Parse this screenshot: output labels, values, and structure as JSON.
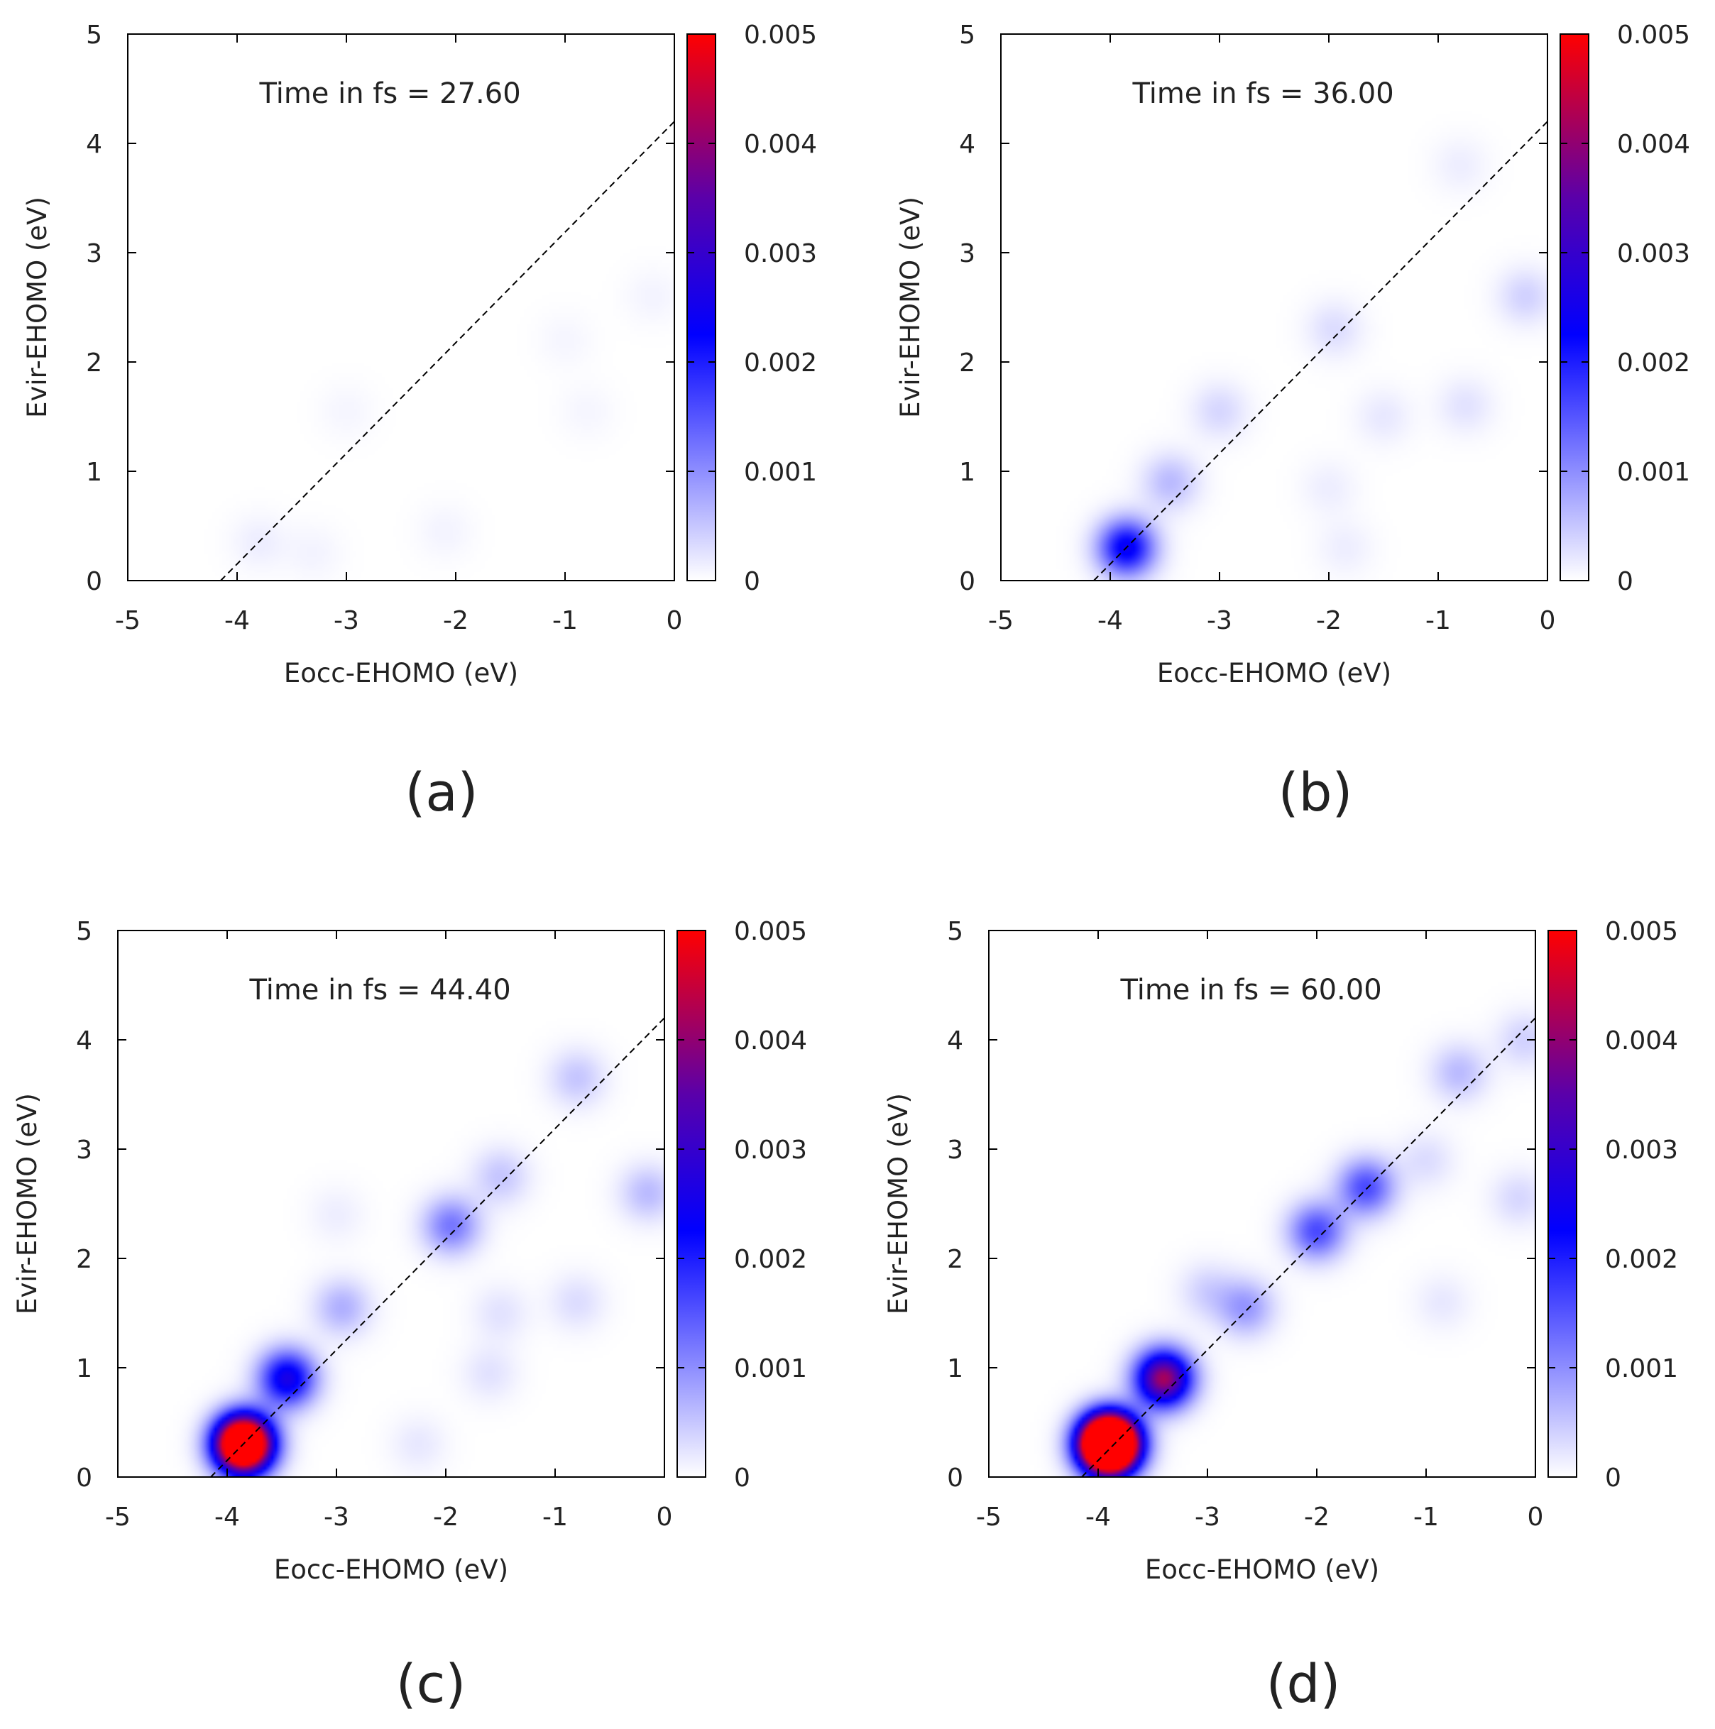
{
  "figure": {
    "captions": [
      "(a)",
      "(b)",
      "(c)",
      "(d)"
    ]
  },
  "colors": {
    "low": "#ffffff",
    "mid": "#0000ff",
    "high": "#ff0000",
    "diagonal": "#000000"
  },
  "chart_data": [
    {
      "type": "heatmap",
      "panel": "(a)",
      "annotation": "Time in fs = 27.60",
      "xlabel": "Eocc-EHOMO (eV)",
      "ylabel": "Evir-EHOMO (eV)",
      "xlim": [
        -5,
        0
      ],
      "ylim": [
        0,
        5
      ],
      "xticks": [
        "-5",
        "-4",
        "-3",
        "-2",
        "-1",
        "0"
      ],
      "yticks": [
        "0",
        "1",
        "2",
        "3",
        "4",
        "5"
      ],
      "colorbar": {
        "range": [
          0,
          0.005
        ],
        "ticks": [
          "0",
          "0.001",
          "0.002",
          "0.003",
          "0.004",
          "0.005"
        ]
      },
      "diagonal": {
        "style": "dashed",
        "from": [
          -4.15,
          0
        ],
        "to": [
          0,
          4.2
        ]
      },
      "peaks": [
        {
          "x": -3.8,
          "y": 0.35,
          "value": 0.00015
        },
        {
          "x": -3.3,
          "y": 0.25,
          "value": 0.0001
        },
        {
          "x": -2.1,
          "y": 0.45,
          "value": 0.0001
        },
        {
          "x": -3.0,
          "y": 1.55,
          "value": 8e-05
        },
        {
          "x": -0.8,
          "y": 1.55,
          "value": 8e-05
        },
        {
          "x": -0.2,
          "y": 2.6,
          "value": 0.0001
        },
        {
          "x": -1.0,
          "y": 2.2,
          "value": 8e-05
        }
      ]
    },
    {
      "type": "heatmap",
      "panel": "(b)",
      "annotation": "Time in fs = 36.00",
      "xlabel": "Eocc-EHOMO (eV)",
      "ylabel": "Evir-EHOMO (eV)",
      "xlim": [
        -5,
        0
      ],
      "ylim": [
        0,
        5
      ],
      "xticks": [
        "-5",
        "-4",
        "-3",
        "-2",
        "-1",
        "0"
      ],
      "yticks": [
        "0",
        "1",
        "2",
        "3",
        "4",
        "5"
      ],
      "colorbar": {
        "range": [
          0,
          0.005
        ],
        "ticks": [
          "0",
          "0.001",
          "0.002",
          "0.003",
          "0.004",
          "0.005"
        ]
      },
      "diagonal": {
        "style": "dashed",
        "from": [
          -4.15,
          0
        ],
        "to": [
          0,
          4.2
        ]
      },
      "peaks": [
        {
          "x": -3.85,
          "y": 0.3,
          "value": 0.0024
        },
        {
          "x": -3.45,
          "y": 0.9,
          "value": 0.0006
        },
        {
          "x": -3.0,
          "y": 1.55,
          "value": 0.00035
        },
        {
          "x": -1.95,
          "y": 2.3,
          "value": 0.0003
        },
        {
          "x": -0.2,
          "y": 2.6,
          "value": 0.0004
        },
        {
          "x": -0.75,
          "y": 1.6,
          "value": 0.00025
        },
        {
          "x": -1.5,
          "y": 1.5,
          "value": 0.0002
        },
        {
          "x": -1.85,
          "y": 0.3,
          "value": 0.00015
        },
        {
          "x": -2.0,
          "y": 0.85,
          "value": 0.00015
        },
        {
          "x": -0.8,
          "y": 3.8,
          "value": 0.00015
        }
      ]
    },
    {
      "type": "heatmap",
      "panel": "(c)",
      "annotation": "Time in fs = 44.40",
      "xlabel": "Eocc-EHOMO (eV)",
      "ylabel": "Evir-EHOMO (eV)",
      "xlim": [
        -5,
        0
      ],
      "ylim": [
        0,
        5
      ],
      "xticks": [
        "-5",
        "-4",
        "-3",
        "-2",
        "-1",
        "0"
      ],
      "yticks": [
        "0",
        "1",
        "2",
        "3",
        "4",
        "5"
      ],
      "colorbar": {
        "range": [
          0,
          0.005
        ],
        "ticks": [
          "0",
          "0.001",
          "0.002",
          "0.003",
          "0.004",
          "0.005"
        ]
      },
      "diagonal": {
        "style": "dashed",
        "from": [
          -4.15,
          0
        ],
        "to": [
          0,
          4.2
        ]
      },
      "peaks": [
        {
          "x": -3.85,
          "y": 0.3,
          "value": 0.0085
        },
        {
          "x": -3.45,
          "y": 0.9,
          "value": 0.0026
        },
        {
          "x": -2.95,
          "y": 1.55,
          "value": 0.0007
        },
        {
          "x": -1.95,
          "y": 2.3,
          "value": 0.0012
        },
        {
          "x": -1.5,
          "y": 2.75,
          "value": 0.0005
        },
        {
          "x": -0.8,
          "y": 3.65,
          "value": 0.0005
        },
        {
          "x": -0.15,
          "y": 2.6,
          "value": 0.0006
        },
        {
          "x": -0.8,
          "y": 1.6,
          "value": 0.0003
        },
        {
          "x": -1.5,
          "y": 1.5,
          "value": 0.00025
        },
        {
          "x": -1.6,
          "y": 0.95,
          "value": 0.00025
        },
        {
          "x": -2.25,
          "y": 0.3,
          "value": 0.0002
        },
        {
          "x": -3.0,
          "y": 2.4,
          "value": 0.00015
        }
      ]
    },
    {
      "type": "heatmap",
      "panel": "(d)",
      "annotation": "Time in fs = 60.00",
      "xlabel": "Eocc-EHOMO (eV)",
      "ylabel": "Evir-EHOMO (eV)",
      "xlim": [
        -5,
        0
      ],
      "ylim": [
        0,
        5
      ],
      "xticks": [
        "-5",
        "-4",
        "-3",
        "-2",
        "-1",
        "0"
      ],
      "yticks": [
        "0",
        "1",
        "2",
        "3",
        "4",
        "5"
      ],
      "colorbar": {
        "range": [
          0,
          0.005
        ],
        "ticks": [
          "0",
          "0.001",
          "0.002",
          "0.003",
          "0.004",
          "0.005"
        ]
      },
      "diagonal": {
        "style": "dashed",
        "from": [
          -4.15,
          0
        ],
        "to": [
          0,
          4.2
        ]
      },
      "peaks": [
        {
          "x": -3.9,
          "y": 0.3,
          "value": 0.012
        },
        {
          "x": -3.4,
          "y": 0.9,
          "value": 0.0042
        },
        {
          "x": -2.65,
          "y": 1.55,
          "value": 0.0009
        },
        {
          "x": -3.0,
          "y": 1.7,
          "value": 0.0004
        },
        {
          "x": -2.0,
          "y": 2.25,
          "value": 0.0016
        },
        {
          "x": -1.55,
          "y": 2.65,
          "value": 0.0016
        },
        {
          "x": -0.7,
          "y": 3.7,
          "value": 0.0006
        },
        {
          "x": -0.1,
          "y": 4.0,
          "value": 0.0004
        },
        {
          "x": -0.15,
          "y": 2.55,
          "value": 0.00035
        },
        {
          "x": -1.0,
          "y": 2.9,
          "value": 0.0003
        },
        {
          "x": -0.85,
          "y": 1.6,
          "value": 0.0002
        }
      ]
    }
  ]
}
